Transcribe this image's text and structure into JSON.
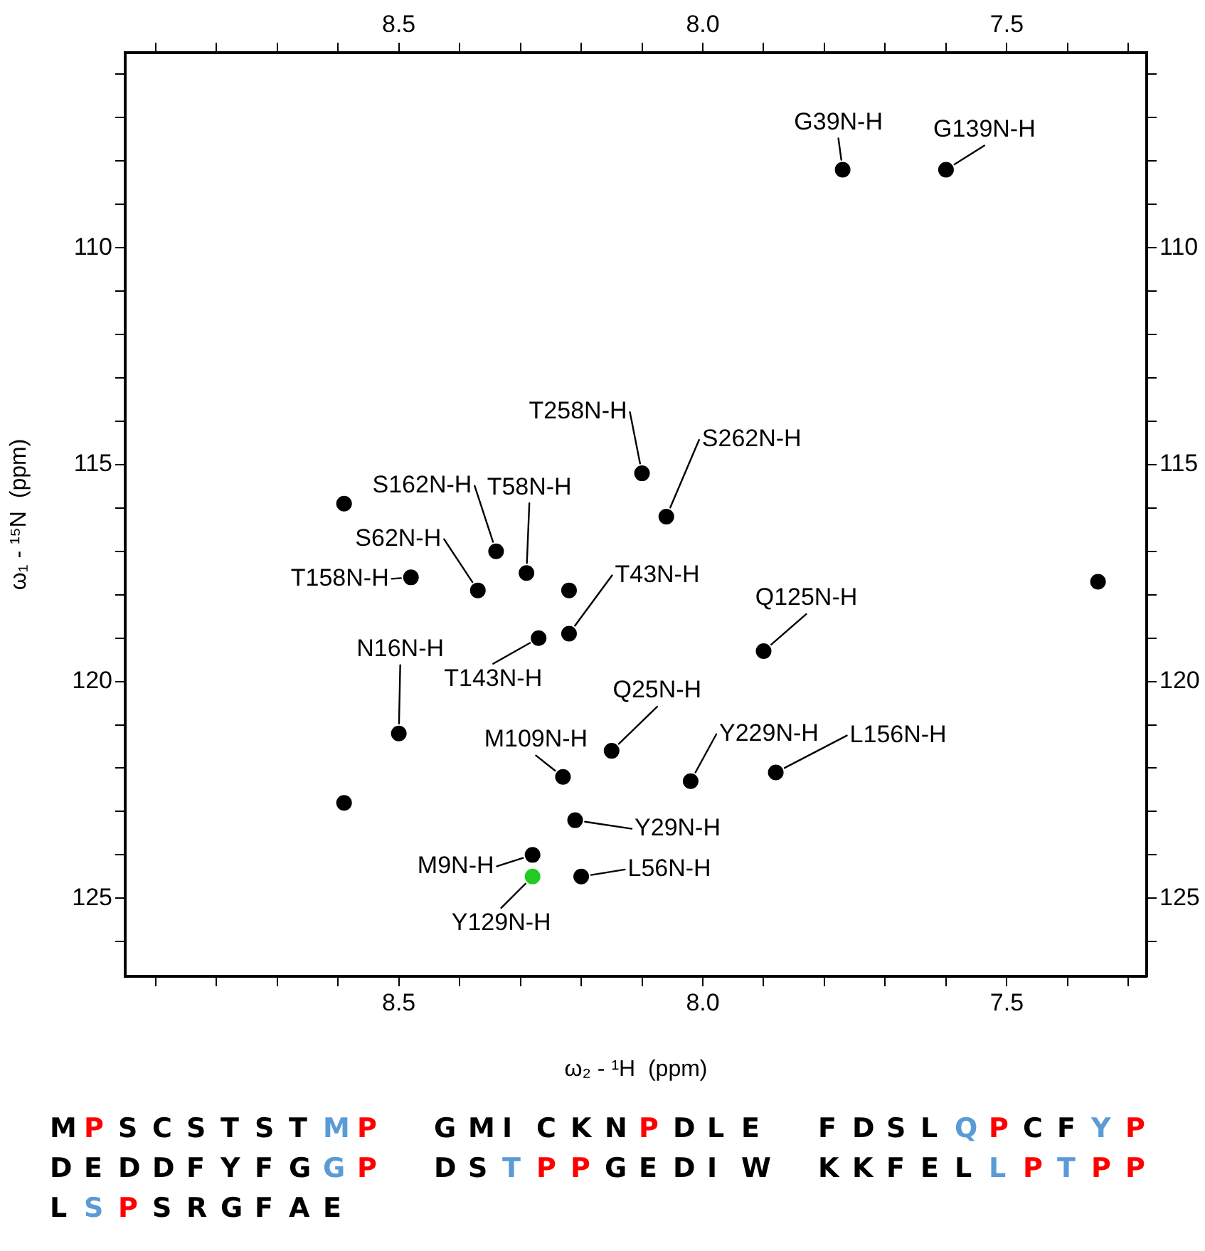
{
  "chart_data": {
    "type": "scatter",
    "xlabel": "ω₂ - ¹H  (ppm)",
    "ylabel": "ω₁ - ¹⁵N  (ppm)",
    "series": [
      {
        "color": "#000000",
        "x": [
          7.77,
          7.6,
          8.1,
          8.06,
          8.34,
          8.29,
          8.37,
          8.48,
          8.22,
          8.27,
          7.9,
          8.5,
          8.15,
          8.23,
          8.02,
          7.88,
          8.21,
          8.28,
          8.2,
          8.59,
          8.59,
          7.35,
          8.22
        ],
        "values": [
          108.2,
          108.2,
          115.2,
          116.2,
          117.0,
          117.5,
          117.9,
          117.6,
          118.9,
          119.0,
          119.3,
          121.2,
          121.6,
          122.2,
          122.3,
          122.1,
          123.2,
          124.0,
          124.5,
          115.9,
          122.8,
          117.7,
          117.9
        ]
      },
      {
        "color": "#22cc22",
        "x": [
          8.28
        ],
        "values": [
          124.5
        ]
      }
    ],
    "marker": "circle",
    "xlim": [
      8.95,
      7.27
    ],
    "ylim": [
      126.8,
      105.5
    ],
    "xticks": [
      {
        "value": 8.9,
        "label": null
      },
      {
        "value": 8.8,
        "label": null
      },
      {
        "value": 8.7,
        "label": null
      },
      {
        "value": 8.6,
        "label": null
      },
      {
        "value": 8.5,
        "label": "8.5"
      },
      {
        "value": 8.4,
        "label": null
      },
      {
        "value": 8.3,
        "label": null
      },
      {
        "value": 8.2,
        "label": null
      },
      {
        "value": 8.1,
        "label": null
      },
      {
        "value": 8,
        "label": "8.0"
      },
      {
        "value": 7.9,
        "label": null
      },
      {
        "value": 7.8,
        "label": null
      },
      {
        "value": 7.7,
        "label": null
      },
      {
        "value": 7.6,
        "label": null
      },
      {
        "value": 7.5,
        "label": "7.5"
      },
      {
        "value": 7.4,
        "label": null
      },
      {
        "value": 7.3,
        "label": null
      }
    ],
    "x2lim": [
      8.95,
      7.27
    ],
    "x2ticks": [
      {
        "value": 8.9,
        "label": null
      },
      {
        "value": 8.8,
        "label": null
      },
      {
        "value": 8.7,
        "label": null
      },
      {
        "value": 8.6,
        "label": null
      },
      {
        "value": 8.5,
        "label": "8.5"
      },
      {
        "value": 8.4,
        "label": null
      },
      {
        "value": 8.3,
        "label": null
      },
      {
        "value": 8.2,
        "label": null
      },
      {
        "value": 8.1,
        "label": null
      },
      {
        "value": 8,
        "label": "8.0"
      },
      {
        "value": 7.9,
        "label": null
      },
      {
        "value": 7.8,
        "label": null
      },
      {
        "value": 7.7,
        "label": null
      },
      {
        "value": 7.6,
        "label": null
      },
      {
        "value": 7.5,
        "label": "7.5"
      },
      {
        "value": 7.4,
        "label": null
      },
      {
        "value": 7.3,
        "label": null
      }
    ],
    "yticks": [
      {
        "value": 106,
        "label": null
      },
      {
        "value": 107,
        "label": null
      },
      {
        "value": 108,
        "label": null
      },
      {
        "value": 109,
        "label": null
      },
      110,
      {
        "value": 111,
        "label": null
      },
      {
        "value": 112,
        "label": null
      },
      {
        "value": 113,
        "label": null
      },
      {
        "value": 114,
        "label": null
      },
      115,
      {
        "value": 116,
        "label": null
      },
      {
        "value": 117,
        "label": null
      },
      {
        "value": 118,
        "label": null
      },
      {
        "value": 119,
        "label": null
      },
      120,
      {
        "value": 121,
        "label": null
      },
      {
        "value": 122,
        "label": null
      },
      {
        "value": 123,
        "label": null
      },
      {
        "value": 124,
        "label": null
      },
      125,
      {
        "value": 126,
        "label": null
      }
    ],
    "y2lim": [
      126.8,
      105.5
    ],
    "y2ticks": [
      {
        "value": 106,
        "label": null
      },
      {
        "value": 107,
        "label": null
      },
      {
        "value": 108,
        "label": null
      },
      {
        "value": 109,
        "label": null
      },
      110,
      {
        "value": 111,
        "label": null
      },
      {
        "value": 112,
        "label": null
      },
      {
        "value": 113,
        "label": null
      },
      {
        "value": 114,
        "label": null
      },
      115,
      {
        "value": 116,
        "label": null
      },
      {
        "value": 117,
        "label": null
      },
      {
        "value": 118,
        "label": null
      },
      {
        "value": 119,
        "label": null
      },
      120,
      {
        "value": 121,
        "label": null
      },
      {
        "value": 122,
        "label": null
      },
      {
        "value": 123,
        "label": null
      },
      {
        "value": 124,
        "label": null
      },
      125,
      {
        "value": 126,
        "label": null
      }
    ],
    "grid": false,
    "legend": false,
    "annotations": [
      {
        "text": "G39N-H",
        "x": 7.77,
        "y": 108.2
      },
      {
        "text": "G139N-H",
        "x": 7.6,
        "y": 108.2
      },
      {
        "text": "T258N-H",
        "x": 8.1,
        "y": 115.2
      },
      {
        "text": "S262N-H",
        "x": 8.06,
        "y": 116.2
      },
      {
        "text": "S162N-H",
        "x": 8.34,
        "y": 117.0
      },
      {
        "text": "T58N-H",
        "x": 8.29,
        "y": 117.5
      },
      {
        "text": "S62N-H",
        "x": 8.37,
        "y": 117.9
      },
      {
        "text": "T158N-H",
        "x": 8.48,
        "y": 117.6
      },
      {
        "text": "T43N-H",
        "x": 8.22,
        "y": 118.9
      },
      {
        "text": "T143N-H",
        "x": 8.27,
        "y": 119.0
      },
      {
        "text": "Q125N-H",
        "x": 7.9,
        "y": 119.3
      },
      {
        "text": "N16N-H",
        "x": 8.5,
        "y": 121.2
      },
      {
        "text": "Q25N-H",
        "x": 8.15,
        "y": 121.6
      },
      {
        "text": "M109N-H",
        "x": 8.23,
        "y": 122.2
      },
      {
        "text": "Y229N-H",
        "x": 8.02,
        "y": 122.3
      },
      {
        "text": "L156N-H",
        "x": 7.88,
        "y": 122.1
      },
      {
        "text": "Y29N-H",
        "x": 8.21,
        "y": 123.2
      },
      {
        "text": "M9N-H",
        "x": 8.28,
        "y": 124.0
      },
      {
        "text": "L56N-H",
        "x": 8.2,
        "y": 124.5
      },
      {
        "text": "Y129N-H",
        "x": 8.28,
        "y": 124.5
      },
      "M P S C S T S T M P  G M I C K N P D L E  F D S L Q P C F Y P",
      "D E D D F Y F G G P  D S T P P G E D I W  K K F E L L P T P P",
      "L S P S R G F A E"
    ]
  }
}
